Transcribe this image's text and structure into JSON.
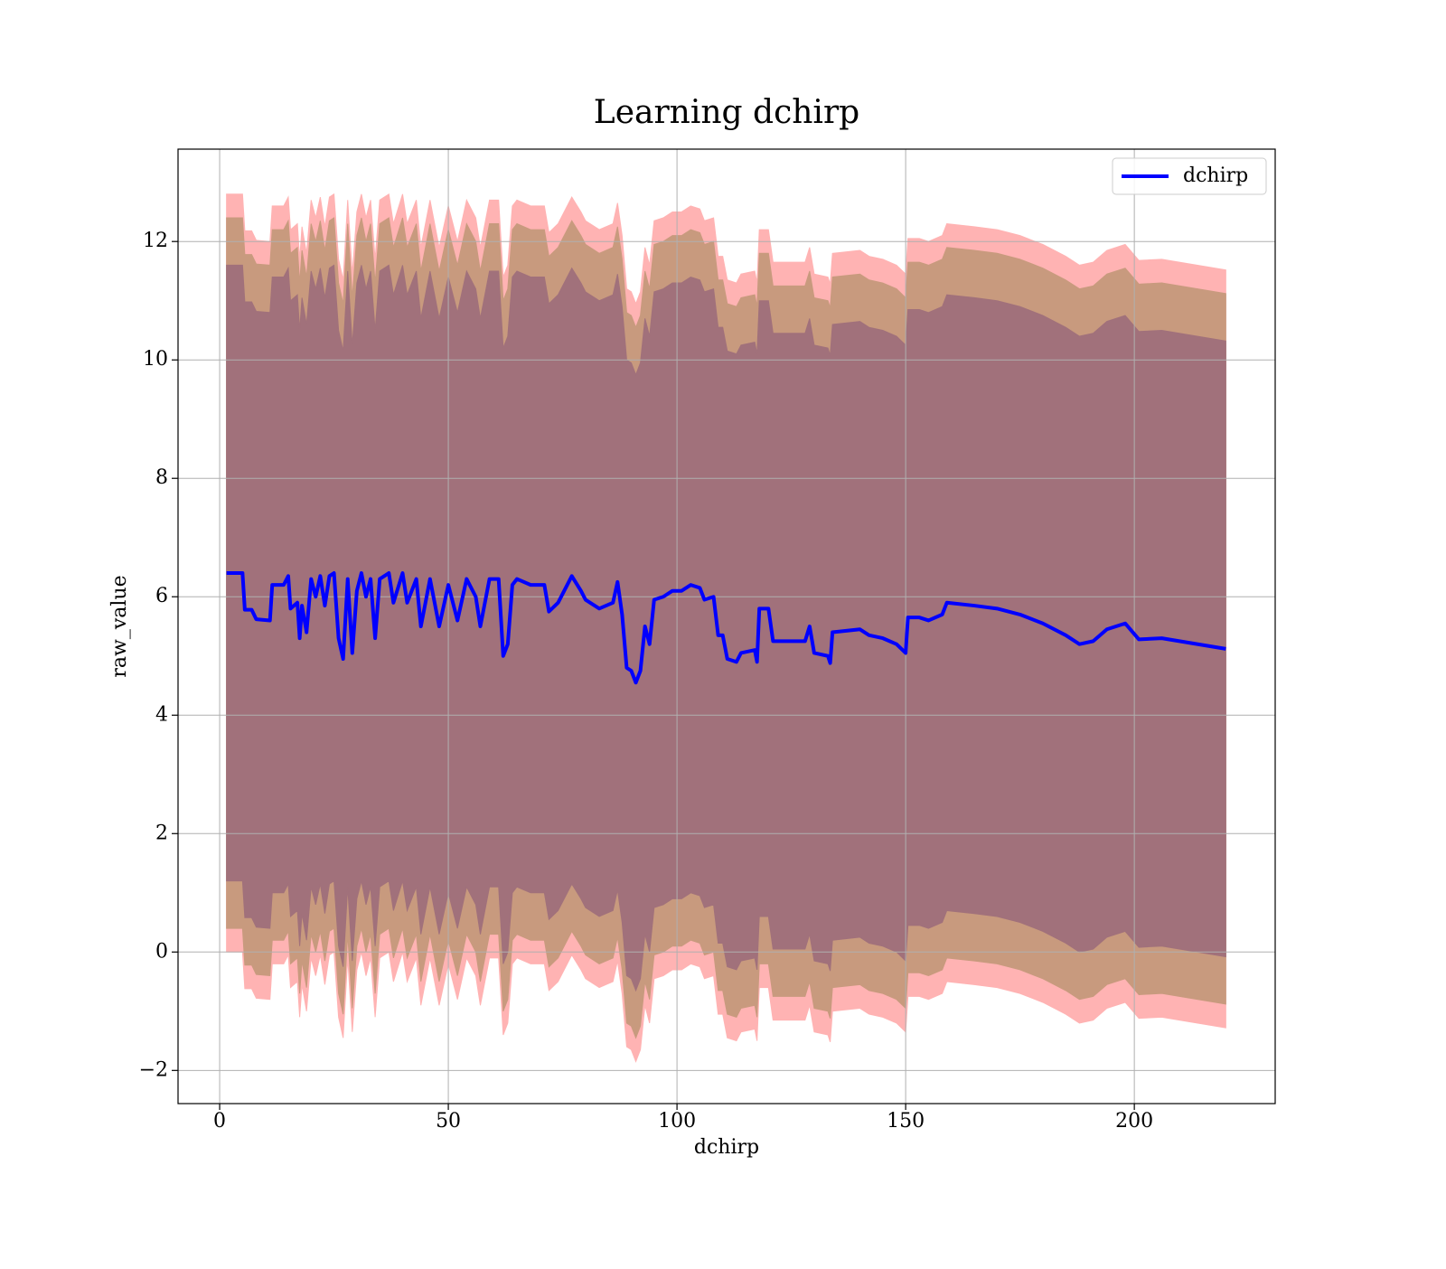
{
  "chart_data": {
    "type": "line",
    "title": "Learning dchirp",
    "x_label": "dchirp",
    "y_label": "raw_value",
    "x": [
      1.5,
      5,
      5.5,
      7,
      8,
      11,
      11.5,
      14,
      15,
      15.5,
      17,
      17.5,
      18,
      19,
      20,
      21,
      22,
      23,
      24,
      25,
      26,
      27,
      28,
      29,
      30,
      31,
      32,
      33,
      34,
      35,
      37,
      38,
      40,
      41,
      43,
      44,
      46,
      48,
      50,
      52,
      54,
      56,
      57,
      59,
      61,
      62,
      63,
      64,
      65,
      68,
      71,
      72,
      74,
      77,
      79,
      80,
      83,
      86,
      87,
      88,
      89,
      90,
      91,
      92,
      93,
      94,
      95,
      97,
      99,
      101,
      103,
      105,
      106,
      108,
      109,
      110,
      111,
      113,
      114,
      117,
      117.5,
      118,
      120,
      121,
      124,
      128,
      129,
      130,
      133,
      133.5,
      134,
      140,
      142,
      145,
      148,
      150,
      150.5,
      153,
      155,
      158,
      159,
      165,
      170,
      175,
      180,
      185,
      188,
      191,
      194,
      198,
      201,
      206,
      220
    ],
    "series": [
      {
        "name": "dchirp",
        "color": "#0000ff",
        "values": [
          6.4,
          6.4,
          5.78,
          5.78,
          5.62,
          5.6,
          6.2,
          6.2,
          6.35,
          5.8,
          5.9,
          5.3,
          5.85,
          5.4,
          6.3,
          6.0,
          6.35,
          5.85,
          6.35,
          6.4,
          5.3,
          4.95,
          6.3,
          5.05,
          6.1,
          6.4,
          6.0,
          6.3,
          5.3,
          6.3,
          6.4,
          5.9,
          6.4,
          5.9,
          6.3,
          5.5,
          6.3,
          5.5,
          6.2,
          5.6,
          6.3,
          6.0,
          5.5,
          6.3,
          6.3,
          5.0,
          5.2,
          6.2,
          6.3,
          6.2,
          6.2,
          5.75,
          5.9,
          6.35,
          6.1,
          5.95,
          5.8,
          5.9,
          6.25,
          5.7,
          4.8,
          4.75,
          4.55,
          4.75,
          5.5,
          5.2,
          5.95,
          6.0,
          6.1,
          6.1,
          6.2,
          6.15,
          5.95,
          6.0,
          5.35,
          5.35,
          4.95,
          4.9,
          5.05,
          5.1,
          4.9,
          5.8,
          5.8,
          5.25,
          5.25,
          5.25,
          5.5,
          5.05,
          5.0,
          4.88,
          5.4,
          5.45,
          5.35,
          5.3,
          5.2,
          5.05,
          5.65,
          5.65,
          5.6,
          5.7,
          5.9,
          5.85,
          5.8,
          5.7,
          5.55,
          5.35,
          5.2,
          5.25,
          5.45,
          5.55,
          5.28,
          5.3,
          5.12
        ],
        "bands": [
          {
            "error": 6.4,
            "color": "#ffb3b3"
          },
          {
            "error": 6.0,
            "color": "#c89a7e"
          },
          {
            "error": 5.2,
            "color": "#a1717b"
          }
        ]
      }
    ],
    "xlim": [
      -9.1,
      230.8
    ],
    "ylim": [
      -2.56,
      13.56
    ],
    "xticks": [
      0,
      50,
      100,
      150,
      200
    ],
    "yticks": [
      {
        "value": -2,
        "label": "−2"
      },
      0,
      2,
      4,
      6,
      8,
      10,
      12
    ],
    "grid": true,
    "legend": "upper right"
  }
}
